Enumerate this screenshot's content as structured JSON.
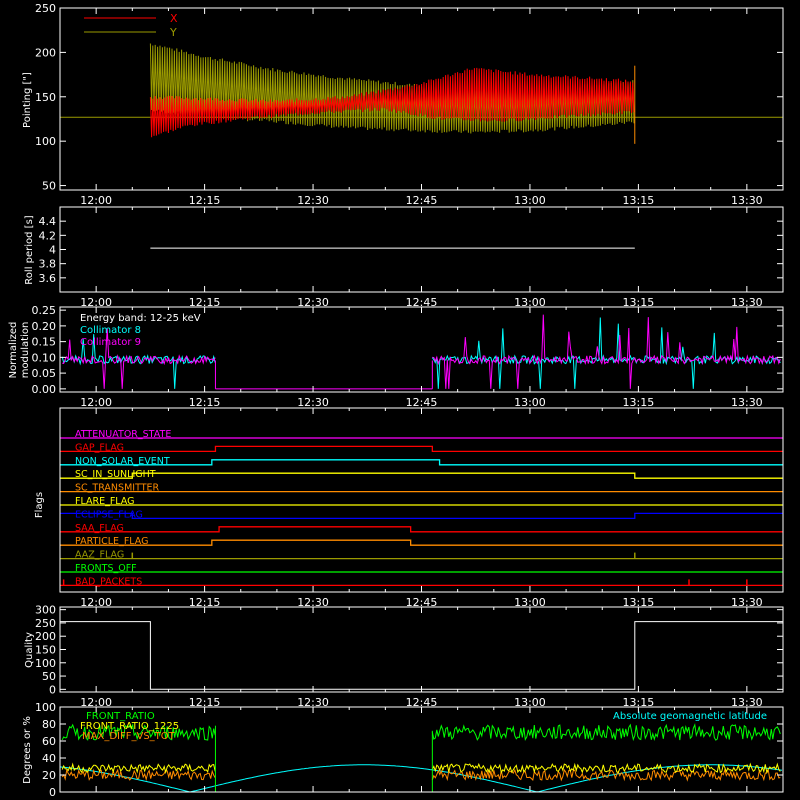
{
  "colors": {
    "background": "#000000",
    "axes": "#ffffff",
    "red": "#ff0000",
    "olive": "#9a9a00",
    "cyan": "#00ffff",
    "magenta": "#ff00ff",
    "yellow": "#ffff00",
    "green": "#00ff00",
    "orange": "#ff8c00",
    "blue": "#0000ff",
    "white": "#ffffff"
  },
  "time_axis": {
    "start_min": 715,
    "end_min": 815,
    "ticks": [
      {
        "min": 720,
        "label": "12:00"
      },
      {
        "min": 735,
        "label": "12:15"
      },
      {
        "min": 750,
        "label": "12:30"
      },
      {
        "min": 765,
        "label": "12:45"
      },
      {
        "min": 780,
        "label": "13:00"
      },
      {
        "min": 795,
        "label": "13:15"
      },
      {
        "min": 810,
        "label": "13:30"
      }
    ]
  },
  "chart_data": [
    {
      "type": "line",
      "ylabel": "Pointing [\"]",
      "ylim": [
        45,
        250
      ],
      "yticks": [
        50,
        100,
        150,
        200,
        250
      ],
      "legend": [
        "X",
        "Y"
      ],
      "reference_line": 127,
      "series": [
        {
          "name": "X",
          "color": "red",
          "span": [
            727.5,
            794.5
          ],
          "min_envelope": [
            [
              727.5,
              105
            ],
            [
              733,
              118
            ],
            [
              740,
              125
            ],
            [
              750,
              132
            ],
            [
              760,
              136
            ],
            [
              768,
              125
            ],
            [
              776,
              123
            ],
            [
              785,
              128
            ],
            [
              794.5,
              133
            ]
          ],
          "max_envelope": [
            [
              727.5,
              150
            ],
            [
              735,
              148
            ],
            [
              745,
              145
            ],
            [
              755,
              150
            ],
            [
              765,
              165
            ],
            [
              772,
              182
            ],
            [
              780,
              175
            ],
            [
              790,
              170
            ],
            [
              794.5,
              167
            ]
          ]
        },
        {
          "name": "Y",
          "color": "olive",
          "span": [
            727.5,
            794.5
          ],
          "min_envelope": [
            [
              727.5,
              135
            ],
            [
              735,
              128
            ],
            [
              745,
              122
            ],
            [
              755,
              115
            ],
            [
              765,
              112
            ],
            [
              772,
              110
            ],
            [
              780,
              112
            ],
            [
              790,
              118
            ],
            [
              794.5,
              122
            ]
          ],
          "max_envelope": [
            [
              727.5,
              210
            ],
            [
              735,
              195
            ],
            [
              745,
              180
            ],
            [
              755,
              170
            ],
            [
              765,
              162
            ],
            [
              772,
              158
            ],
            [
              780,
              160
            ],
            [
              790,
              165
            ],
            [
              794.5,
              168
            ]
          ]
        }
      ]
    },
    {
      "type": "line",
      "ylabel": "Roll period [s]",
      "ylim": [
        3.4,
        4.6
      ],
      "yticks": [
        3.6,
        3.8,
        4.0,
        4.2,
        4.4
      ],
      "series": [
        {
          "name": "",
          "color": "white",
          "points": [
            [
              727.5,
              4.02
            ],
            [
              794.5,
              4.02
            ]
          ]
        }
      ]
    },
    {
      "type": "line",
      "ylabel": "Normalized modulation",
      "ylim": [
        -0.01,
        0.26
      ],
      "yticks": [
        "0.00",
        "0.05",
        "0.10",
        "0.15",
        "0.20",
        "0.25"
      ],
      "annotation": "Energy band: 12-25 keV",
      "legend": [
        "Collimator 8",
        "Collimator 9"
      ],
      "baseline": 0.09,
      "gap": [
        736.5,
        766.5
      ],
      "series": [
        {
          "name": "Collimator 8",
          "color": "cyan"
        },
        {
          "name": "Collimator 9",
          "color": "magenta"
        }
      ]
    },
    {
      "type": "table",
      "ylabel": "Flags",
      "flags": [
        {
          "name": "ATTENUATOR_STATE",
          "color": "magenta",
          "steps": []
        },
        {
          "name": "GAP_FLAG",
          "color": "red",
          "steps": [
            [
              736.5,
              766.5
            ]
          ]
        },
        {
          "name": "NON_SOLAR_EVENT",
          "color": "cyan",
          "steps": [
            [
              736,
              767.5
            ]
          ]
        },
        {
          "name": "SC_IN_SUNLIGHT",
          "color": "yellow",
          "steps": [
            [
              725,
              794.5
            ]
          ]
        },
        {
          "name": "SC_TRANSMITTER",
          "color": "orange",
          "steps": []
        },
        {
          "name": "FLARE_FLAG",
          "color": "yellow",
          "steps": []
        },
        {
          "name": "ECLIPSE_FLAG",
          "color": "blue",
          "steps_down": [
            [
              725,
              794.5
            ]
          ]
        },
        {
          "name": "SAA_FLAG",
          "color": "red",
          "steps": [
            [
              737,
              763.5
            ]
          ]
        },
        {
          "name": "PARTICLE_FLAG",
          "color": "orange",
          "steps": [
            [
              736,
              763.5
            ]
          ]
        },
        {
          "name": "AAZ_FLAG",
          "color": "olive",
          "spikes": [
            725,
            794.5
          ]
        },
        {
          "name": "FRONTS_OFF",
          "color": "green",
          "steps": []
        },
        {
          "name": "BAD_PACKETS",
          "color": "red",
          "spikes": [
            715.5,
            802,
            810
          ]
        }
      ]
    },
    {
      "type": "line",
      "ylabel": "Quality",
      "ylim": [
        -10,
        310
      ],
      "yticks": [
        0,
        50,
        100,
        150,
        200,
        250,
        300
      ],
      "series": [
        {
          "name": "",
          "color": "white",
          "points": [
            [
              715,
              255
            ],
            [
              727.5,
              255
            ],
            [
              727.5,
              0
            ],
            [
              794.5,
              0
            ],
            [
              794.5,
              255
            ],
            [
              815,
              255
            ]
          ]
        }
      ]
    },
    {
      "type": "line",
      "ylabel": "Degrees or %",
      "ylim": [
        0,
        100
      ],
      "yticks": [
        0,
        20,
        40,
        60,
        80,
        100
      ],
      "legend": [
        "FRONT_RATIO",
        "FRONT_RATIO_1225",
        "MAX_DIFF_VS_TOT"
      ],
      "annotation": "Absolute geomagnetic latitude",
      "series": [
        {
          "name": "FRONT_RATIO",
          "color": "green",
          "level": 70
        },
        {
          "name": "FRONT_RATIO_1225",
          "color": "yellow",
          "level": 28
        },
        {
          "name": "MAX_DIFF_VS_TOT",
          "color": "orange",
          "level": 20
        },
        {
          "name": "Absolute geomagnetic latitude",
          "color": "cyan"
        }
      ]
    }
  ]
}
